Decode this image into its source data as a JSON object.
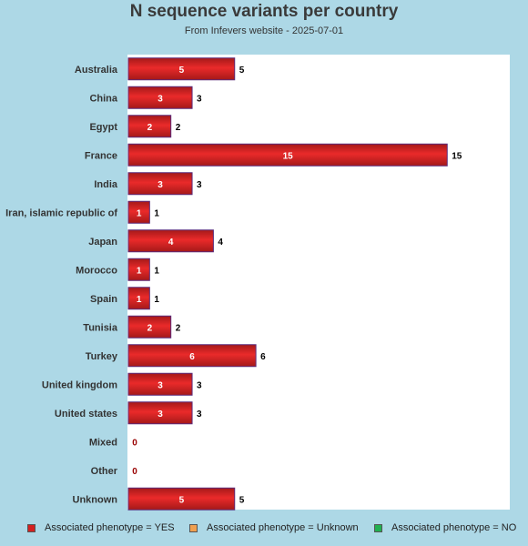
{
  "chart_data": {
    "type": "bar",
    "orientation": "horizontal",
    "title": "N sequence variants per country",
    "subtitle": "From Infevers website - 2025-07-01",
    "categories": [
      "Australia",
      "China",
      "Egypt",
      "France",
      "India",
      "Iran, islamic republic of",
      "Japan",
      "Morocco",
      "Spain",
      "Tunisia",
      "Turkey",
      "United kingdom",
      "United states",
      "Mixed",
      "Other",
      "Unknown"
    ],
    "series": [
      {
        "name": "Associated phenotype = YES",
        "color": "#d42020",
        "values": [
          5,
          3,
          2,
          15,
          3,
          1,
          4,
          1,
          1,
          2,
          6,
          3,
          3,
          0,
          0,
          5
        ]
      },
      {
        "name": "Associated phenotype = Unknown",
        "color": "#f0a050",
        "values": [
          0,
          0,
          0,
          0,
          0,
          0,
          0,
          0,
          0,
          0,
          0,
          0,
          0,
          0,
          0,
          0
        ]
      },
      {
        "name": "Associated phenotype = NO",
        "color": "#20b050",
        "values": [
          0,
          0,
          0,
          0,
          0,
          0,
          0,
          0,
          0,
          0,
          0,
          0,
          0,
          0,
          0,
          0
        ]
      }
    ],
    "totals": [
      5,
      3,
      2,
      15,
      3,
      1,
      4,
      1,
      1,
      2,
      6,
      3,
      3,
      0,
      0,
      5
    ],
    "xlim": [
      0,
      18
    ],
    "grid": false,
    "legend_position": "bottom"
  }
}
